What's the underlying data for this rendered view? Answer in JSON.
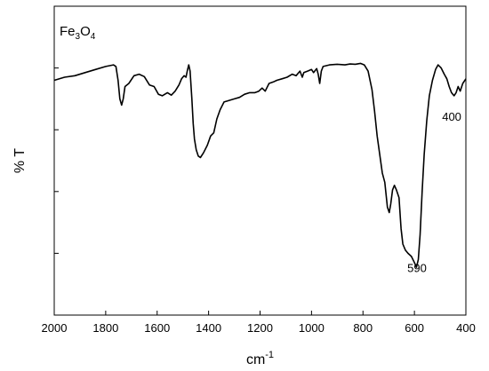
{
  "chart_data": {
    "type": "line",
    "title": "",
    "xlabel_main": "cm",
    "xlabel_sup": "-1",
    "ylabel": "% T",
    "legend_main": "Fe",
    "legend_sub1": "3",
    "legend_mid": "O",
    "legend_sub2": "4",
    "xlim": [
      2000,
      400
    ],
    "x_reversed": true,
    "ylim": [
      0,
      100
    ],
    "grid": false,
    "x_ticks": [
      2000,
      1800,
      1600,
      1400,
      1200,
      1000,
      800,
      600,
      400
    ],
    "x_tick_labels": [
      "2000",
      "1800",
      "1600",
      "1400",
      "1200",
      "1000",
      "800",
      "600",
      "400"
    ],
    "y_ticks": [
      20,
      40,
      60,
      80
    ],
    "annotations": [
      {
        "text": "590",
        "x": 590,
        "y": 14
      },
      {
        "text": "400",
        "x": 455,
        "y": 63
      }
    ],
    "series": [
      {
        "values": [
          [
            2000,
            76
          ],
          [
            1960,
            77
          ],
          [
            1920,
            77.5
          ],
          [
            1880,
            78.5
          ],
          [
            1840,
            79.5
          ],
          [
            1800,
            80.5
          ],
          [
            1770,
            81
          ],
          [
            1760,
            80.5
          ],
          [
            1752,
            76
          ],
          [
            1745,
            70
          ],
          [
            1738,
            68
          ],
          [
            1732,
            70
          ],
          [
            1725,
            74
          ],
          [
            1710,
            75
          ],
          [
            1690,
            77.5
          ],
          [
            1670,
            78
          ],
          [
            1650,
            77.2
          ],
          [
            1630,
            74.5
          ],
          [
            1612,
            74
          ],
          [
            1595,
            71.5
          ],
          [
            1580,
            71
          ],
          [
            1560,
            72
          ],
          [
            1545,
            71.2
          ],
          [
            1530,
            72.5
          ],
          [
            1515,
            74.5
          ],
          [
            1505,
            76.5
          ],
          [
            1495,
            77.5
          ],
          [
            1488,
            77
          ],
          [
            1483,
            79
          ],
          [
            1477,
            81
          ],
          [
            1472,
            79
          ],
          [
            1465,
            70
          ],
          [
            1460,
            62
          ],
          [
            1455,
            57
          ],
          [
            1448,
            53.5
          ],
          [
            1440,
            51.5
          ],
          [
            1432,
            51
          ],
          [
            1420,
            52.5
          ],
          [
            1405,
            55
          ],
          [
            1392,
            58
          ],
          [
            1380,
            59
          ],
          [
            1368,
            63.5
          ],
          [
            1355,
            66.5
          ],
          [
            1340,
            69
          ],
          [
            1320,
            69.5
          ],
          [
            1300,
            70
          ],
          [
            1280,
            70.5
          ],
          [
            1260,
            71.5
          ],
          [
            1240,
            72
          ],
          [
            1220,
            72
          ],
          [
            1205,
            72.5
          ],
          [
            1192,
            73.5
          ],
          [
            1180,
            72.5
          ],
          [
            1165,
            75
          ],
          [
            1148,
            75.5
          ],
          [
            1135,
            76
          ],
          [
            1115,
            76.5
          ],
          [
            1095,
            77
          ],
          [
            1075,
            78
          ],
          [
            1060,
            77.5
          ],
          [
            1045,
            79
          ],
          [
            1036,
            77
          ],
          [
            1030,
            78.5
          ],
          [
            1015,
            79
          ],
          [
            1000,
            79.5
          ],
          [
            992,
            78.5
          ],
          [
            980,
            79.8
          ],
          [
            974,
            78
          ],
          [
            968,
            75
          ],
          [
            962,
            79
          ],
          [
            955,
            80.5
          ],
          [
            930,
            81
          ],
          [
            900,
            81.2
          ],
          [
            870,
            81
          ],
          [
            850,
            81.3
          ],
          [
            830,
            81.2
          ],
          [
            810,
            81.5
          ],
          [
            795,
            81
          ],
          [
            780,
            79
          ],
          [
            765,
            73
          ],
          [
            755,
            66
          ],
          [
            745,
            58
          ],
          [
            735,
            52
          ],
          [
            725,
            46
          ],
          [
            715,
            43
          ],
          [
            705,
            35
          ],
          [
            698,
            33.2
          ],
          [
            692,
            36
          ],
          [
            685,
            40.5
          ],
          [
            678,
            42
          ],
          [
            670,
            40.5
          ],
          [
            660,
            38
          ],
          [
            652,
            28
          ],
          [
            645,
            23
          ],
          [
            635,
            21
          ],
          [
            625,
            20
          ],
          [
            612,
            19
          ],
          [
            600,
            17
          ],
          [
            592,
            15.5
          ],
          [
            585,
            18
          ],
          [
            578,
            26
          ],
          [
            570,
            40
          ],
          [
            562,
            52
          ],
          [
            552,
            63
          ],
          [
            542,
            71
          ],
          [
            530,
            76
          ],
          [
            518,
            79.5
          ],
          [
            508,
            81
          ],
          [
            496,
            80
          ],
          [
            484,
            78
          ],
          [
            474,
            76.5
          ],
          [
            465,
            74
          ],
          [
            456,
            72
          ],
          [
            446,
            71
          ],
          [
            438,
            72
          ],
          [
            430,
            74
          ],
          [
            422,
            72.5
          ],
          [
            412,
            75
          ],
          [
            400,
            76.5
          ]
        ]
      }
    ]
  }
}
